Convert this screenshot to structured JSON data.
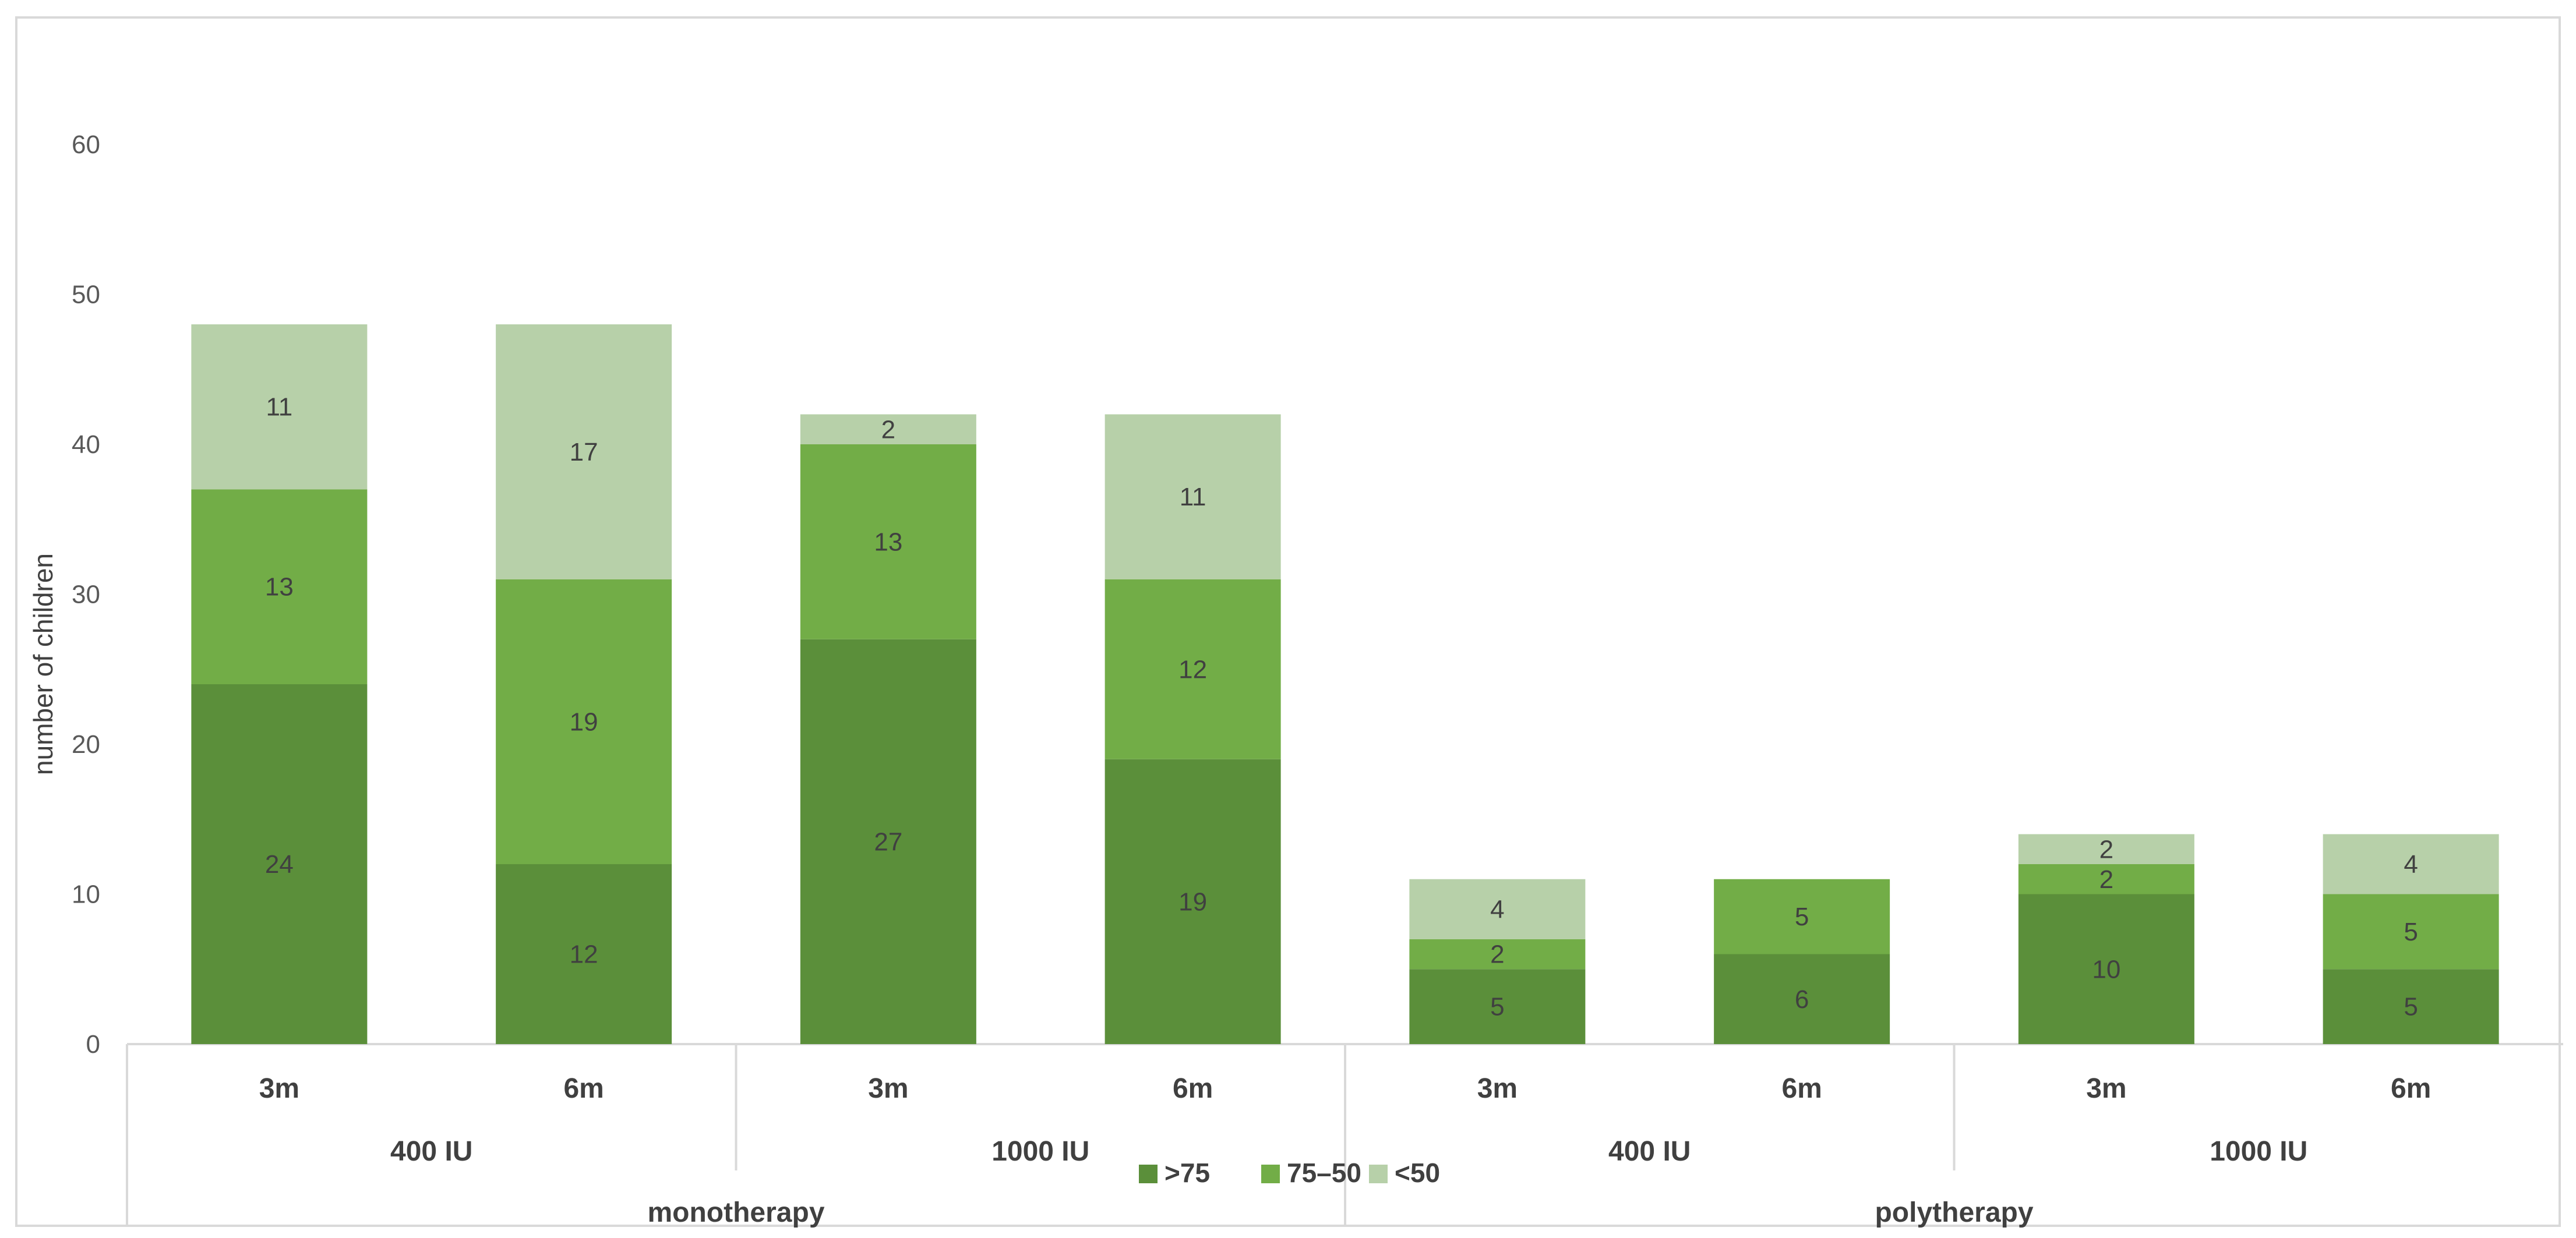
{
  "chart_data": {
    "type": "bar",
    "stacked": true,
    "ylabel": "number of children",
    "ylim": [
      0,
      60
    ],
    "yticks": [
      0,
      10,
      20,
      30,
      40,
      50,
      60
    ],
    "grid": false,
    "legend_position": "bottom",
    "categories": [
      {
        "time": "3m",
        "dose": "400 IU",
        "group": "monotherapy"
      },
      {
        "time": "6m",
        "dose": "400 IU",
        "group": "monotherapy"
      },
      {
        "time": "3m",
        "dose": "1000 IU",
        "group": "monotherapy"
      },
      {
        "time": "6m",
        "dose": "1000 IU",
        "group": "monotherapy"
      },
      {
        "time": "3m",
        "dose": "400 IU",
        "group": "polytherapy"
      },
      {
        "time": "6m",
        "dose": "400 IU",
        "group": "polytherapy"
      },
      {
        "time": "3m",
        "dose": "1000 IU",
        "group": "polytherapy"
      },
      {
        "time": "6m",
        "dose": "1000 IU",
        "group": "polytherapy"
      }
    ],
    "dose_groups": [
      {
        "label": "400 IU",
        "span": [
          0,
          1
        ]
      },
      {
        "label": "1000 IU",
        "span": [
          2,
          3
        ]
      },
      {
        "label": "400 IU",
        "span": [
          4,
          5
        ]
      },
      {
        "label": "1000 IU",
        "span": [
          6,
          7
        ]
      }
    ],
    "therapy_groups": [
      {
        "label": "monotherapy",
        "span": [
          0,
          3
        ]
      },
      {
        "label": "polytherapy",
        "span": [
          4,
          7
        ]
      }
    ],
    "series": [
      {
        "name": ">75",
        "color": "#5b8f3a",
        "values": [
          24,
          12,
          27,
          19,
          5,
          6,
          10,
          5
        ]
      },
      {
        "name": "75–50",
        "color": "#72ad47",
        "values": [
          13,
          19,
          13,
          12,
          2,
          5,
          2,
          5
        ]
      },
      {
        "name": "<50",
        "color": "#b7d0a9",
        "values": [
          11,
          17,
          2,
          11,
          4,
          0,
          2,
          4
        ]
      }
    ]
  }
}
